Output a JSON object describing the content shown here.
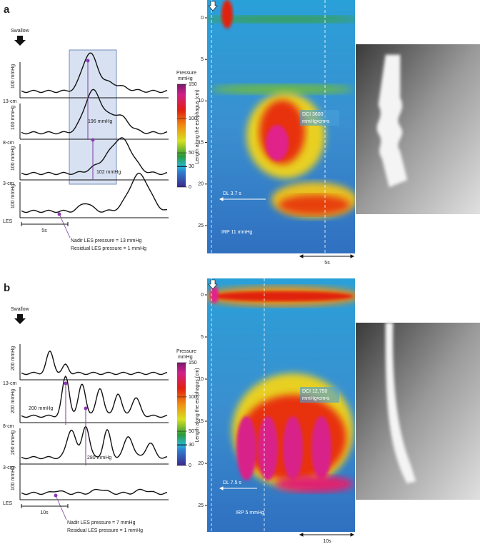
{
  "panels": [
    {
      "label": "a",
      "swallow": "Swallow",
      "traces": [
        {
          "scale": "100 mmHg",
          "site": "13-cm"
        },
        {
          "scale": "100 mmHg",
          "site": "8-cm"
        },
        {
          "scale": "100 mmHg",
          "site": "3-cm"
        },
        {
          "scale": "100 mmHg",
          "site": "LES"
        }
      ],
      "time_scale": "5s",
      "annotations": [
        "196 mmHg",
        "102 mmHg"
      ],
      "nadir": "Nadir LES pressure = 13 mmHg",
      "residual": "Residual LES pressure = 1 mmHg",
      "colorbar": {
        "title": "Pressure",
        "unit": "mmHg",
        "ticks": [
          "150",
          "100",
          "50",
          "30",
          "0"
        ]
      },
      "topo": {
        "axis_label": "Length along the esophagus (cm)",
        "ticks": [
          "0",
          "5",
          "10",
          "15",
          "20",
          "25"
        ],
        "dci": "DCI 3600",
        "dci_unit": "mmHg•cm•s",
        "dl": "DL 3.7 s",
        "irp": "IRP 11 mmHg",
        "time_scale": "5s"
      }
    },
    {
      "label": "b",
      "swallow": "Swallow",
      "traces": [
        {
          "scale": "200 mmHg",
          "site": "13-cm"
        },
        {
          "scale": "200 mmHg",
          "site": "8-cm"
        },
        {
          "scale": "200 mmHg",
          "site": "3-cm"
        },
        {
          "scale": "100 mmHg",
          "site": "LES"
        }
      ],
      "time_scale": "10s",
      "annotations": [
        "200 mmHg",
        "280 mmHg"
      ],
      "nadir": "Nadir LES pressure = 7 mmHg",
      "residual": "Residual LES pressure = 1 mmHg",
      "colorbar": {
        "title": "Pressure",
        "unit": "mmHg",
        "ticks": [
          "150",
          "100",
          "50",
          "30",
          "0"
        ]
      },
      "topo": {
        "axis_label": "Length along the esophagus (cm)",
        "ticks": [
          "0",
          "5",
          "10",
          "15",
          "20",
          "25"
        ],
        "dci": "DCI 12,750",
        "dci_unit": "mmHg•cm•s",
        "dl": "DL 7.5 s",
        "irp": "IRP 5 mmHg",
        "time_scale": "10s"
      }
    }
  ]
}
